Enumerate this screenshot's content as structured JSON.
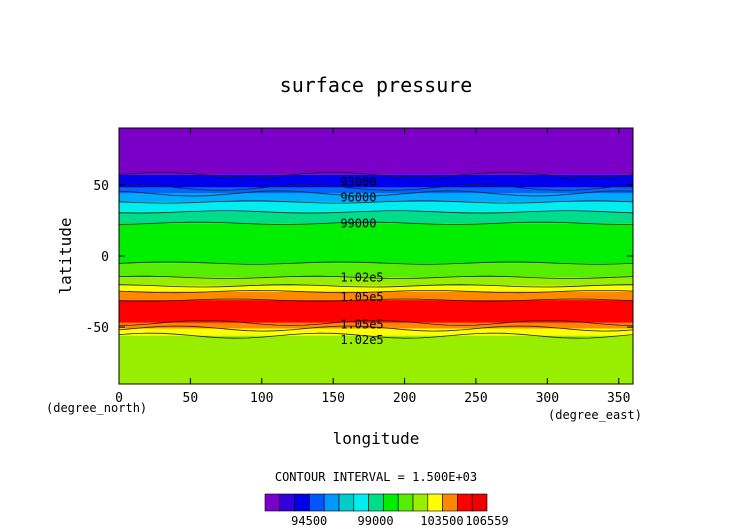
{
  "chart_data": {
    "type": "heatmap",
    "title": "surface pressure",
    "xlabel": "longitude",
    "ylabel": "latitude",
    "x_unit": "(degree_east)",
    "y_unit": "(degree_north)",
    "xlim": [
      0,
      360
    ],
    "ylim": [
      -90,
      90
    ],
    "x_ticks": [
      0,
      50,
      100,
      150,
      200,
      250,
      300,
      350
    ],
    "y_ticks": [
      -50,
      0,
      50
    ],
    "contour_interval_label": "CONTOUR INTERVAL = 1.500E+03",
    "levels": [
      91500,
      93000,
      94500,
      96000,
      97500,
      99000,
      100500,
      102000,
      103500,
      105000,
      106559
    ],
    "colorbar_labels": [
      "94500",
      "99000",
      "103500",
      "106559"
    ],
    "colorbar_label_values": [
      94500,
      99000,
      103500,
      106559
    ],
    "bands": [
      {
        "y_top": 90,
        "y_bottom": 57,
        "color": "#7a00c8"
      },
      {
        "y_top": 57,
        "y_bottom": 48,
        "color": "#0000ee"
      },
      {
        "y_top": 48,
        "y_bottom": 44,
        "color": "#0066ff"
      },
      {
        "y_top": 44,
        "y_bottom": 38,
        "color": "#00aaff"
      },
      {
        "y_top": 38,
        "y_bottom": 31,
        "color": "#00eeee"
      },
      {
        "y_top": 31,
        "y_bottom": 23,
        "color": "#00dd88"
      },
      {
        "y_top": 23,
        "y_bottom": -5,
        "color": "#00ee00"
      },
      {
        "y_top": -5,
        "y_bottom": -15,
        "color": "#55ee00"
      },
      {
        "y_top": -15,
        "y_bottom": -21,
        "color": "#99ee00"
      },
      {
        "y_top": -21,
        "y_bottom": -25,
        "color": "#ffff00"
      },
      {
        "y_top": -25,
        "y_bottom": -31,
        "color": "#ff8800"
      },
      {
        "y_top": -31,
        "y_bottom": -47,
        "color": "#ff0000"
      },
      {
        "y_top": -47,
        "y_bottom": -51,
        "color": "#ff8800"
      },
      {
        "y_top": -51,
        "y_bottom": -56,
        "color": "#ffff00"
      },
      {
        "y_top": -56,
        "y_bottom": -90,
        "color": "#99ee00"
      }
    ],
    "contour_lines": [
      57,
      48,
      44,
      38,
      31,
      23,
      -5,
      -15,
      -21,
      -25,
      -31,
      -47,
      -51,
      -56
    ],
    "contour_labels": [
      {
        "text": "93000",
        "x": 127,
        "y": 52
      },
      {
        "text": "96000",
        "x": 127,
        "y": 41
      },
      {
        "text": "99000",
        "x": 127,
        "y": 23
      },
      {
        "text": "1.02e5",
        "x": 127,
        "y": -15
      },
      {
        "text": "1.05e5",
        "x": 127,
        "y": -29
      },
      {
        "text": "1.05e5",
        "x": 127,
        "y": -48
      },
      {
        "text": "1.02e5",
        "x": 127,
        "y": -59
      }
    ],
    "grid": false,
    "legend": "bottom",
    "colorbar_colors": [
      "#7a00c8",
      "#3300dd",
      "#0000ee",
      "#0055ff",
      "#0099ff",
      "#00cccc",
      "#00eeee",
      "#00dd88",
      "#00ee00",
      "#55ee00",
      "#99ee00",
      "#ffff00",
      "#ff8800",
      "#ff0000",
      "#ee0000"
    ]
  }
}
